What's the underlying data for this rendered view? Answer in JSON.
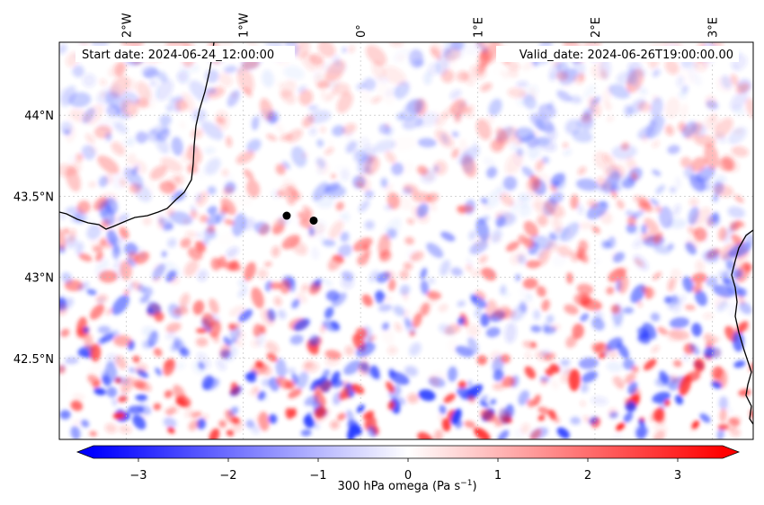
{
  "map": {
    "start_label": "Start date: 2024-06-24_12:00:00",
    "valid_label": "Valid_date: 2024-06-26T19:00:00.00",
    "lon_labels": [
      "2°W",
      "1°W",
      "0°",
      "1°E",
      "2°E",
      "3°E"
    ],
    "lon_values": [
      -2,
      -1,
      0,
      1,
      2,
      3
    ],
    "lat_labels": [
      "44°N",
      "43.5°N",
      "43°N",
      "42.5°N"
    ],
    "lat_values": [
      44,
      43.5,
      43,
      42.5
    ],
    "lon_range": [
      -2.57,
      3.35
    ],
    "lat_range": [
      42.0,
      44.45
    ],
    "field": "300 hPa omega",
    "markers": [
      {
        "name": "point-1",
        "lon": -0.63,
        "lat": 43.38
      },
      {
        "name": "point-2",
        "lon": -0.4,
        "lat": 43.35
      }
    ]
  },
  "colorbar": {
    "label": "300 hPa omega (Pa s",
    "label_exp": "−1",
    "label_close": ")",
    "ticks": [
      "−3",
      "−2",
      "−1",
      "0",
      "1",
      "2",
      "3"
    ],
    "tick_values": [
      -3,
      -2,
      -1,
      0,
      1,
      2,
      3
    ],
    "range": [
      -3.5,
      3.5
    ],
    "low_color": "#0000ff",
    "mid_color": "#ffffff",
    "high_color": "#ff0000"
  }
}
